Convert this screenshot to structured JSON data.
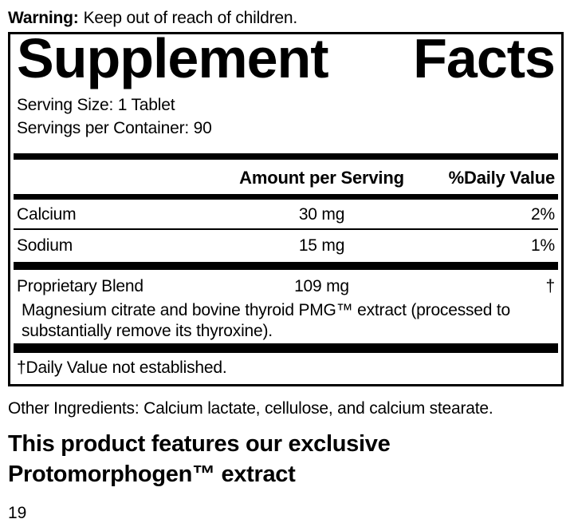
{
  "colors": {
    "ink": "#000000",
    "paper": "#ffffff"
  },
  "warning": {
    "label": "Warning:",
    "text": "Keep out of reach of children."
  },
  "panel": {
    "title": {
      "word1": "Supplement",
      "word2": "Facts"
    },
    "serving_size": "Serving Size: 1 Tablet",
    "servings_per_container": "Servings per Container: 90",
    "columns": {
      "amount_header": "Amount per Serving",
      "daily_value_header": "%Daily Value"
    },
    "nutrients": [
      {
        "name": "Calcium",
        "amount": "30 mg",
        "daily_value": "2%"
      },
      {
        "name": "Sodium",
        "amount": "15 mg",
        "daily_value": "1%"
      }
    ],
    "blend": {
      "name": "Proprietary Blend",
      "amount": "109 mg",
      "daily_value": "†",
      "description_lines": [
        "Magnesium citrate and bovine thyroid PMG™ extract (processed to",
        "substantially remove its thyroxine)."
      ]
    },
    "footnote": "†Daily Value not established."
  },
  "other_ingredients": "Other Ingredients: Calcium lactate, cellulose, and calcium stearate.",
  "feature_heading": {
    "line1": "This product features our exclusive",
    "line2": "Protomorphogen™ extract"
  },
  "page_number": "19"
}
